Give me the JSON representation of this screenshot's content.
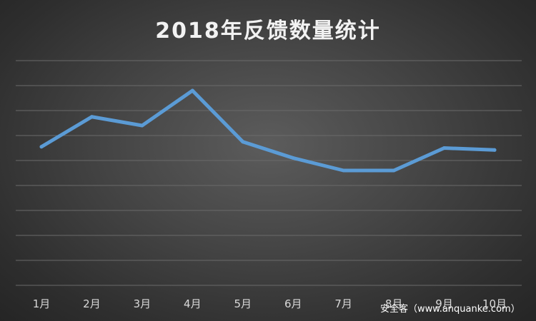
{
  "chart_data": {
    "type": "line",
    "title": "2018年反馈数量统计",
    "categories": [
      "1月",
      "2月",
      "3月",
      "4月",
      "5月",
      "6月",
      "7月",
      "8月",
      "9月",
      "10月"
    ],
    "series": [
      {
        "values": [
          5.55,
          6.75,
          6.4,
          7.8,
          5.75,
          5.1,
          4.6,
          4.6,
          5.5,
          5.42
        ]
      }
    ],
    "ylim": [
      0,
      9
    ],
    "grid": true,
    "colors": {
      "line": "#5b9bd5",
      "grid": "#6a6a6a",
      "title": "#f2f2f2",
      "tick": "#d9d9d9"
    }
  },
  "watermark": "安全客（www.anquanke.com）"
}
